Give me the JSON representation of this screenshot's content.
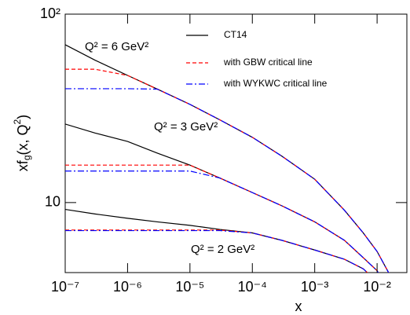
{
  "chart_data": {
    "type": "line",
    "xlabel": "x",
    "ylabel": [
      "xf",
      "g",
      "(x, Q",
      "2",
      ")"
    ],
    "x": [
      1e-07,
      3e-07,
      1e-06,
      3e-06,
      1e-05,
      3e-05,
      0.0001,
      0.0003,
      0.001,
      0.003,
      0.006,
      0.01,
      0.015,
      0.02
    ],
    "xlim": [
      1e-07,
      0.03
    ],
    "ylim": [
      4.25,
      100
    ],
    "xlog": true,
    "ylog": true,
    "xticks": [
      {
        "value": 1e-07,
        "label": "10⁻⁷"
      },
      {
        "value": 1e-06,
        "label": "10⁻⁶"
      },
      {
        "value": 1e-05,
        "label": "10⁻⁵"
      },
      {
        "value": 0.0001,
        "label": "10⁻⁴"
      },
      {
        "value": 0.001,
        "label": "10⁻³"
      },
      {
        "value": 0.01,
        "label": "10⁻²"
      }
    ],
    "yticks": [
      10,
      {
        "value": 100,
        "label": "10²"
      }
    ],
    "curve_labels": [
      "Q² = 6 GeV²",
      "Q² = 3 GeV²",
      "Q² = 2 GeV²"
    ],
    "series": [
      {
        "name": "CT14",
        "color": "#000000",
        "dash": "none",
        "curves": [
          [
            68.8,
            57,
            47.3,
            40,
            33.2,
            27.5,
            22.2,
            17.6,
            13.3,
            9.1,
            6.9,
            5.5,
            4.3,
            3.5
          ],
          [
            26.1,
            23.4,
            21.1,
            18.3,
            15.8,
            13.5,
            11.3,
            9.6,
            7.9,
            6.3,
            5.1,
            4.35,
            3.4,
            2.8
          ],
          [
            9.2,
            8.7,
            8.25,
            7.9,
            7.57,
            7.2,
            6.9,
            6.3,
            5.6,
            5.0,
            4.45,
            3.8,
            3.1,
            2.5
          ]
        ]
      },
      {
        "name": "with GBW critical line",
        "color": "#ff0000",
        "dash": "5 3",
        "curves": [
          [
            51,
            51,
            47.3,
            40,
            33.2,
            27.5,
            22.2,
            17.6,
            13.3,
            9.1,
            6.9,
            5.5,
            4.3,
            3.5
          ],
          [
            15.8,
            15.8,
            15.8,
            15.8,
            15.8,
            13.5,
            11.3,
            9.6,
            7.9,
            6.3,
            5.1,
            4.35,
            3.4,
            2.8
          ],
          [
            7.15,
            7.15,
            7.15,
            7.15,
            7.15,
            7.15,
            6.9,
            6.3,
            5.6,
            5.0,
            4.45,
            3.8,
            3.1,
            2.5
          ]
        ]
      },
      {
        "name": "with WYKWC critical line",
        "color": "#0000ff",
        "dash": "8 3 2 3",
        "curves": [
          [
            40.2,
            40.2,
            40.2,
            40,
            33.2,
            27.5,
            22.2,
            17.6,
            13.3,
            9.1,
            6.9,
            5.5,
            4.3,
            3.5
          ],
          [
            14.7,
            14.7,
            14.7,
            14.7,
            14.7,
            13.5,
            11.3,
            9.6,
            7.9,
            6.3,
            5.1,
            4.35,
            3.4,
            2.8
          ],
          [
            7.1,
            7.1,
            7.1,
            7.1,
            7.1,
            7.1,
            6.9,
            6.3,
            5.6,
            5.0,
            4.45,
            3.8,
            3.1,
            2.5
          ]
        ]
      }
    ]
  }
}
